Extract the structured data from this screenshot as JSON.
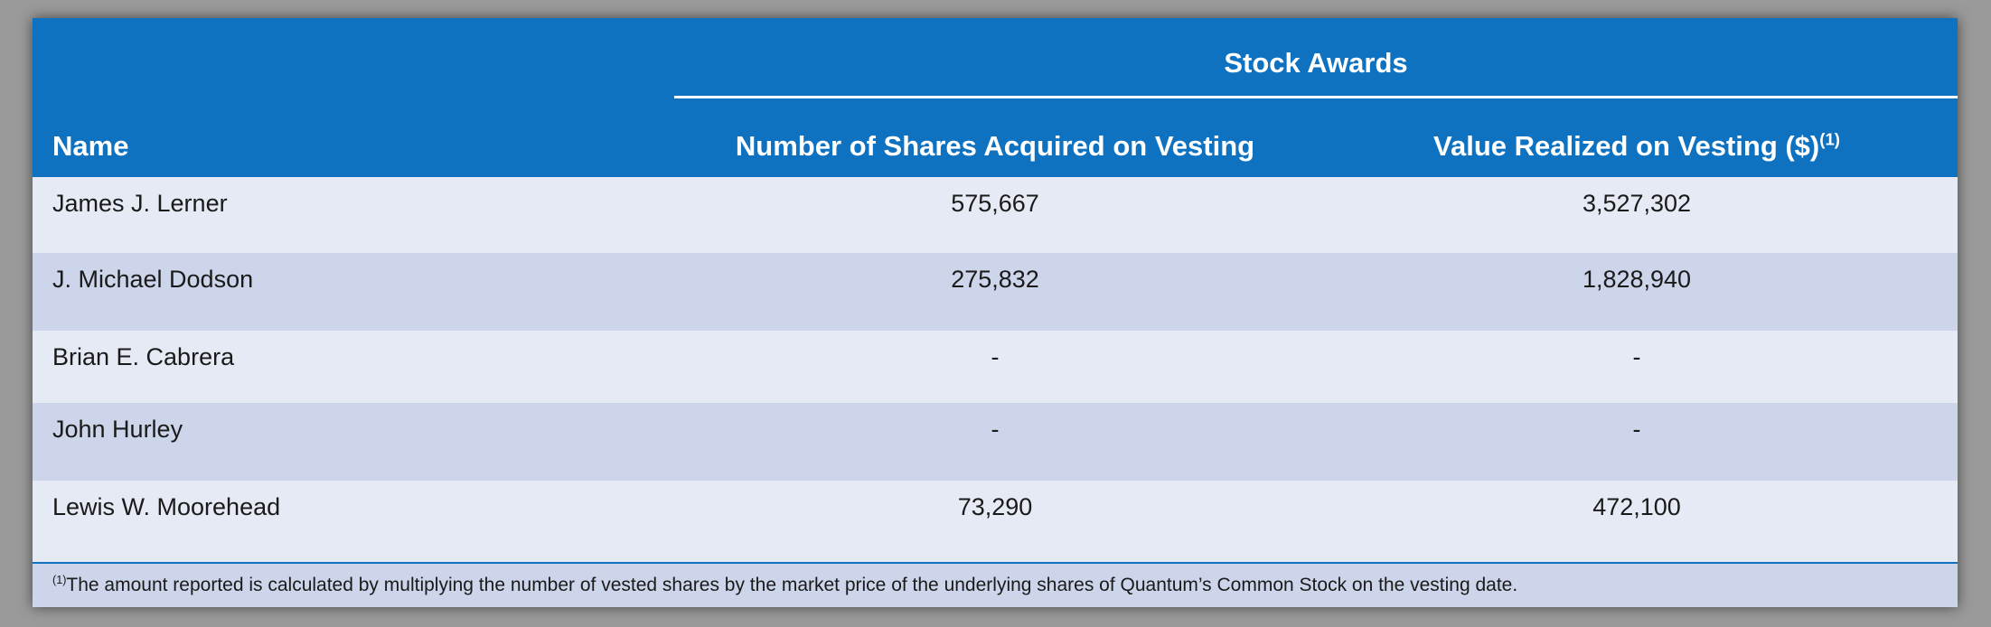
{
  "table": {
    "group_header": "Stock Awards",
    "columns": {
      "name": "Name",
      "shares": "Number of Shares Acquired on Vesting",
      "value": "Value Realized on Vesting ($)",
      "value_note_marker": "(1)"
    },
    "rows": [
      {
        "name": "James J. Lerner",
        "shares": "575,667",
        "value": "3,527,302"
      },
      {
        "name": "J. Michael Dodson",
        "shares": "275,832",
        "value": "1,828,940"
      },
      {
        "name": "Brian E. Cabrera",
        "shares": "-",
        "value": "-"
      },
      {
        "name": "John Hurley",
        "shares": "-",
        "value": "-"
      },
      {
        "name": "Lewis W. Moorehead",
        "shares": "73,290",
        "value": "472,100"
      }
    ],
    "footnote": {
      "marker": "(1)",
      "text": "The amount reported is calculated by multiplying the number of vested shares by the market price of the underlying shares of Quantum’s Common Stock on the vesting date."
    }
  },
  "colors": {
    "header_blue": "#0f72c1",
    "row_light": "#e6eaf5",
    "row_dark": "#cdd5ea"
  }
}
